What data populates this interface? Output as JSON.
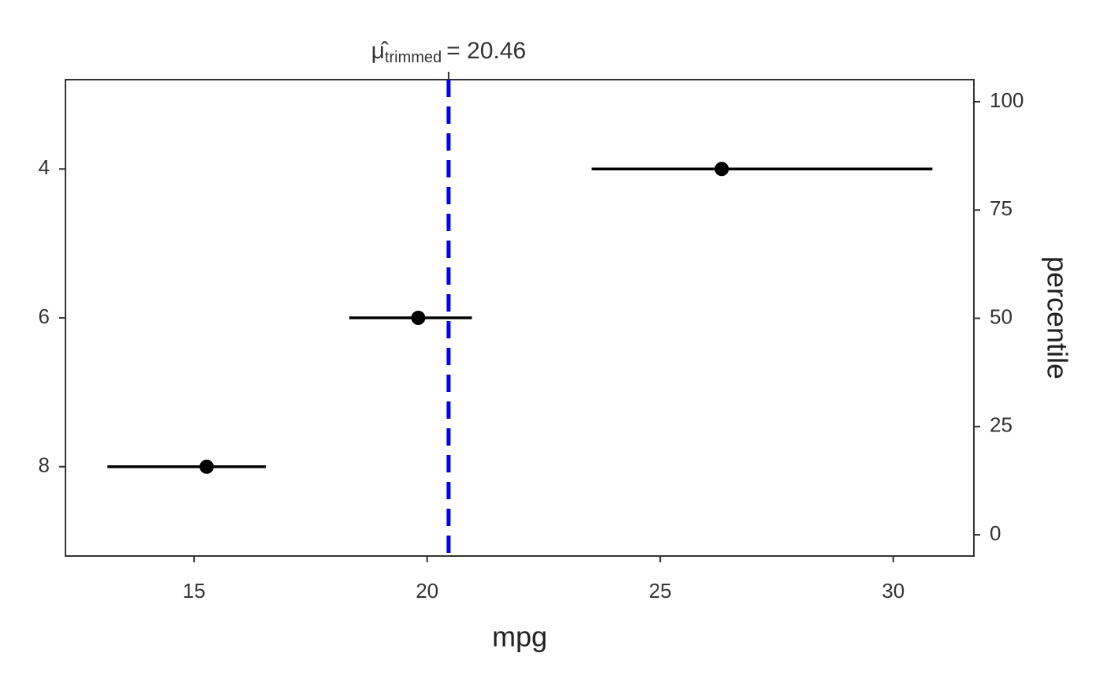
{
  "chart_data": {
    "type": "pointrange",
    "categories": [
      "4",
      "6",
      "8"
    ],
    "values": [
      26.32,
      19.81,
      15.27
    ],
    "lower": [
      23.53,
      18.33,
      13.14
    ],
    "upper": [
      30.84,
      20.96,
      16.54
    ],
    "color": "#000000",
    "x_label": "mpg",
    "xlim": [
      12.24,
      31.73
    ],
    "xticks": [
      15,
      20,
      25,
      30
    ],
    "y2_label": "percentile",
    "y2lim": [
      -4.9,
      105.1
    ],
    "y2ticks": [
      0,
      25,
      50,
      75,
      100
    ],
    "reference_line": {
      "value": 20.46,
      "color": "#0000ff",
      "symbol": "μ̂",
      "subscript": "trimmed",
      "label": "= 20.46"
    }
  }
}
